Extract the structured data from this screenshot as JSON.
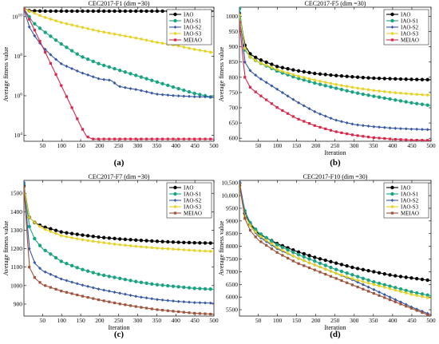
{
  "chart_data": [
    {
      "type": "line",
      "title": "CEC2017-F1 (dim =30)",
      "panel_label": "(a)",
      "xlabel": "",
      "ylabel": "Average fitness value",
      "xlim": [
        1,
        500
      ],
      "xticks": [
        50,
        100,
        150,
        200,
        250,
        300,
        350,
        400,
        450,
        500
      ],
      "yscale": "log",
      "ylim": [
        5000,
        30000000000
      ],
      "yticks": [
        {
          "value": 10000,
          "base": "10",
          "exp": "4"
        },
        {
          "value": 1000000,
          "base": "10",
          "exp": "6"
        },
        {
          "value": 100000000,
          "base": "10",
          "exp": "8"
        },
        {
          "value": 10000000000,
          "base": "10",
          "exp": "10"
        }
      ],
      "legend_position": "top-right",
      "series": [
        {
          "name": "IAO",
          "color": "#000000",
          "x": [
            1,
            15,
            50,
            100,
            200,
            300,
            400,
            500
          ],
          "y": [
            25000000000,
            20000000000,
            19000000000,
            19000000000,
            19000000000,
            19000000000,
            19000000000,
            19000000000
          ]
        },
        {
          "name": "IAO-S1",
          "color": "#1aa383",
          "x": [
            1,
            25,
            50,
            100,
            150,
            200,
            250,
            300,
            350,
            400,
            450,
            500
          ],
          "y": [
            25000000000,
            5000000000,
            2000000000,
            400000000,
            100000000,
            40000000,
            20000000,
            10000000,
            5000000,
            2500000,
            1300000,
            800000
          ]
        },
        {
          "name": "IAO-S2",
          "color": "#3658a6",
          "x": [
            1,
            15,
            30,
            50,
            75,
            100,
            150,
            200,
            230,
            250,
            270,
            300,
            350,
            400,
            450,
            500
          ],
          "y": [
            25000000000,
            3000000000,
            1000000000,
            300000000,
            100000000,
            40000000,
            15000000,
            7000000,
            6000000,
            3000000,
            2500000,
            2000000,
            1200000,
            1000000,
            900000,
            850000
          ]
        },
        {
          "name": "IAO-S3",
          "color": "#e5d11e",
          "x": [
            1,
            50,
            100,
            150,
            200,
            250,
            300,
            350,
            400,
            450,
            500
          ],
          "y": [
            25000000000,
            10000000000,
            5000000000,
            3000000000,
            1800000000,
            1200000000,
            800000000,
            500000000,
            350000000,
            220000000,
            150000000
          ]
        },
        {
          "name": "MEIAO",
          "color": "#d9274a",
          "x": [
            1,
            25,
            50,
            75,
            100,
            125,
            150,
            165,
            180,
            200,
            300,
            400,
            500
          ],
          "y": [
            25000000000,
            3000000000,
            300000000,
            30000000,
            3000000,
            300000,
            30000,
            9000,
            6500,
            6500,
            6500,
            6500,
            6500
          ]
        }
      ]
    },
    {
      "type": "line",
      "title": "CEC2017-F5 (dim =30)",
      "panel_label": "(b)",
      "xlabel": "Iteration",
      "ylabel": "Average fitness value",
      "xlim": [
        1,
        500
      ],
      "xticks": [
        50,
        100,
        150,
        200,
        250,
        300,
        350,
        400,
        450,
        500
      ],
      "yscale": "linear",
      "ylim": [
        590,
        1030
      ],
      "yticks": [
        {
          "value": 600,
          "label": "600"
        },
        {
          "value": 650,
          "label": "650"
        },
        {
          "value": 700,
          "label": "700"
        },
        {
          "value": 750,
          "label": "750"
        },
        {
          "value": 800,
          "label": "800"
        },
        {
          "value": 850,
          "label": "850"
        },
        {
          "value": 900,
          "label": "900"
        },
        {
          "value": 950,
          "label": "950"
        },
        {
          "value": 1000,
          "label": "1000"
        }
      ],
      "legend_position": "top-right",
      "series": [
        {
          "name": "IAO",
          "color": "#000000",
          "x": [
            1,
            15,
            30,
            50,
            100,
            150,
            200,
            250,
            300,
            350,
            400,
            450,
            500
          ],
          "y": [
            1010,
            905,
            875,
            860,
            835,
            822,
            812,
            806,
            801,
            797,
            795,
            793,
            792
          ]
        },
        {
          "name": "IAO-S1",
          "color": "#1aa383",
          "x": [
            1,
            15,
            30,
            50,
            100,
            150,
            200,
            250,
            300,
            350,
            400,
            450,
            500
          ],
          "y": [
            1025,
            890,
            865,
            850,
            820,
            798,
            780,
            765,
            750,
            738,
            727,
            716,
            707
          ]
        },
        {
          "name": "IAO-S2",
          "color": "#3658a6",
          "x": [
            1,
            15,
            30,
            50,
            100,
            150,
            200,
            250,
            300,
            350,
            400,
            450,
            500
          ],
          "y": [
            1010,
            850,
            820,
            800,
            760,
            720,
            685,
            660,
            645,
            638,
            633,
            630,
            628
          ]
        },
        {
          "name": "IAO-S3",
          "color": "#e5d11e",
          "x": [
            1,
            15,
            30,
            50,
            100,
            150,
            200,
            250,
            300,
            350,
            400,
            450,
            500
          ],
          "y": [
            1005,
            895,
            865,
            850,
            825,
            805,
            790,
            777,
            766,
            757,
            750,
            745,
            741
          ]
        },
        {
          "name": "MEIAO",
          "color": "#d9274a",
          "x": [
            1,
            15,
            30,
            50,
            100,
            150,
            200,
            250,
            300,
            350,
            400,
            450,
            500
          ],
          "y": [
            980,
            800,
            765,
            745,
            700,
            665,
            640,
            622,
            610,
            602,
            597,
            594,
            593
          ]
        }
      ]
    },
    {
      "type": "line",
      "title": "CEC2017-F7 (dim =30)",
      "panel_label": "(c)",
      "xlabel": "Iteration",
      "ylabel": "Average fitness value",
      "xlim": [
        1,
        500
      ],
      "xticks": [
        50,
        100,
        150,
        200,
        250,
        300,
        350,
        400,
        450,
        500
      ],
      "yscale": "linear",
      "ylim": [
        835,
        1570
      ],
      "yticks": [
        {
          "value": 900,
          "label": "900"
        },
        {
          "value": 1000,
          "label": "1000"
        },
        {
          "value": 1100,
          "label": "1100"
        },
        {
          "value": 1200,
          "label": "1200"
        },
        {
          "value": 1300,
          "label": "1300"
        },
        {
          "value": 1400,
          "label": "1400"
        },
        {
          "value": 1500,
          "label": "1500"
        }
      ],
      "legend_position": "top-right",
      "series": [
        {
          "name": "IAO",
          "color": "#000000",
          "x": [
            1,
            15,
            30,
            50,
            100,
            150,
            200,
            250,
            300,
            350,
            400,
            450,
            500
          ],
          "y": [
            1540,
            1370,
            1340,
            1320,
            1290,
            1275,
            1262,
            1253,
            1246,
            1240,
            1235,
            1232,
            1230
          ]
        },
        {
          "name": "IAO-S1",
          "color": "#1aa383",
          "x": [
            1,
            15,
            30,
            50,
            100,
            150,
            200,
            250,
            300,
            350,
            400,
            450,
            500
          ],
          "y": [
            1550,
            1320,
            1250,
            1200,
            1130,
            1090,
            1060,
            1040,
            1020,
            1005,
            995,
            985,
            980
          ]
        },
        {
          "name": "IAO-S2",
          "color": "#3658a6",
          "x": [
            1,
            15,
            30,
            50,
            100,
            150,
            200,
            250,
            300,
            350,
            400,
            450,
            500
          ],
          "y": [
            1560,
            1200,
            1120,
            1080,
            1035,
            1005,
            980,
            960,
            940,
            925,
            915,
            908,
            905
          ]
        },
        {
          "name": "IAO-S3",
          "color": "#e5d11e",
          "x": [
            1,
            15,
            30,
            50,
            100,
            150,
            200,
            250,
            300,
            350,
            400,
            450,
            500
          ],
          "y": [
            1530,
            1370,
            1340,
            1310,
            1270,
            1250,
            1235,
            1222,
            1212,
            1203,
            1197,
            1190,
            1185
          ]
        },
        {
          "name": "MEIAO",
          "color": "#a0523a",
          "x": [
            1,
            15,
            30,
            50,
            100,
            150,
            200,
            250,
            300,
            350,
            400,
            450,
            500
          ],
          "y": [
            1535,
            1100,
            1040,
            1005,
            970,
            945,
            922,
            902,
            885,
            870,
            860,
            850,
            845
          ]
        }
      ]
    },
    {
      "type": "line",
      "title": "CEC2017-F10 (dim =30)",
      "panel_label": "(d)",
      "xlabel": "Iteration",
      "ylabel": "Average fitness value",
      "xlim": [
        1,
        500
      ],
      "xticks": [
        50,
        100,
        150,
        200,
        250,
        300,
        350,
        400,
        450,
        500
      ],
      "yscale": "linear",
      "ylim": [
        5250,
        10600
      ],
      "yticks": [
        {
          "value": 5500,
          "label": "5500"
        },
        {
          "value": 6000,
          "label": "6000"
        },
        {
          "value": 6500,
          "label": "6500"
        },
        {
          "value": 7000,
          "label": "7000"
        },
        {
          "value": 7500,
          "label": "7500"
        },
        {
          "value": 8000,
          "label": "8000"
        },
        {
          "value": 8500,
          "label": "8500"
        },
        {
          "value": 9000,
          "label": "9000"
        },
        {
          "value": 9500,
          "label": "9500"
        },
        {
          "value": 10000,
          "label": "10,000"
        },
        {
          "value": 10500,
          "label": "10,500"
        }
      ],
      "legend_position": "top-right",
      "series": [
        {
          "name": "IAO",
          "color": "#000000",
          "x": [
            1,
            15,
            30,
            50,
            100,
            150,
            200,
            250,
            300,
            350,
            400,
            450,
            500
          ],
          "y": [
            10400,
            9300,
            8850,
            8500,
            8100,
            7800,
            7550,
            7350,
            7150,
            7000,
            6850,
            6750,
            6650
          ]
        },
        {
          "name": "IAO-S1",
          "color": "#1aa383",
          "x": [
            1,
            15,
            30,
            50,
            100,
            150,
            200,
            250,
            300,
            350,
            400,
            450,
            500
          ],
          "y": [
            10500,
            9400,
            8900,
            8550,
            8050,
            7700,
            7400,
            7100,
            6850,
            6600,
            6400,
            6200,
            6050
          ]
        },
        {
          "name": "IAO-S2",
          "color": "#3658a6",
          "x": [
            1,
            15,
            30,
            50,
            100,
            150,
            200,
            250,
            300,
            350,
            400,
            450,
            500
          ],
          "y": [
            10550,
            9300,
            8800,
            8400,
            7900,
            7550,
            7250,
            6950,
            6650,
            6300,
            5950,
            5600,
            5300
          ]
        },
        {
          "name": "IAO-S3",
          "color": "#e5d11e",
          "x": [
            1,
            15,
            30,
            50,
            100,
            150,
            200,
            250,
            300,
            350,
            400,
            450,
            500
          ],
          "y": [
            10350,
            9200,
            8800,
            8450,
            7950,
            7550,
            7250,
            6950,
            6700,
            6500,
            6300,
            6100,
            5950
          ]
        },
        {
          "name": "MEIAO",
          "color": "#a0523a",
          "x": [
            1,
            15,
            30,
            50,
            100,
            150,
            200,
            250,
            300,
            350,
            400,
            450,
            500
          ],
          "y": [
            10450,
            9100,
            8600,
            8250,
            7750,
            7350,
            7050,
            6750,
            6450,
            6150,
            5850,
            5550,
            5250
          ]
        }
      ]
    }
  ]
}
